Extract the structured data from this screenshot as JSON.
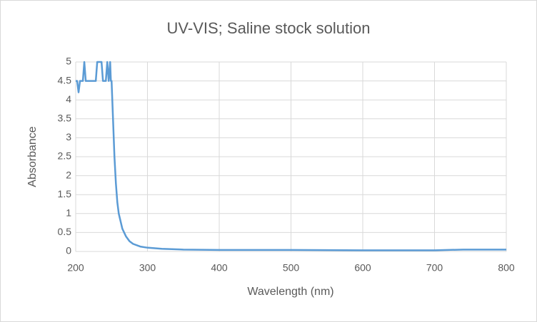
{
  "chart_data": {
    "type": "line",
    "title": "UV-VIS; Saline stock solution",
    "x_label": "Wavelength (nm)",
    "y_label": "Absorbance",
    "x": [
      200,
      202,
      204,
      206,
      210,
      212,
      214,
      228,
      230,
      236,
      238,
      242,
      244,
      246,
      248,
      249,
      250,
      252,
      254,
      256,
      258,
      260,
      265,
      270,
      275,
      280,
      290,
      300,
      320,
      350,
      400,
      500,
      600,
      700,
      740,
      800
    ],
    "values": [
      4.5,
      4.5,
      4.2,
      4.5,
      4.5,
      5,
      4.5,
      4.5,
      5,
      5,
      4.5,
      4.5,
      5,
      4.5,
      5,
      4.5,
      4.5,
      3.5,
      2.5,
      1.8,
      1.3,
      1.0,
      0.6,
      0.4,
      0.27,
      0.2,
      0.13,
      0.1,
      0.07,
      0.05,
      0.04,
      0.04,
      0.03,
      0.03,
      0.05,
      0.05
    ],
    "color": "#5b9bd5",
    "xlim": [
      200,
      800
    ],
    "xticks": [
      200,
      300,
      400,
      500,
      600,
      700,
      800
    ],
    "ylim": [
      0,
      5
    ],
    "yticks": [
      0,
      0.5,
      1,
      1.5,
      2,
      2.5,
      3,
      3.5,
      4,
      4.5,
      5
    ],
    "grid": true
  }
}
